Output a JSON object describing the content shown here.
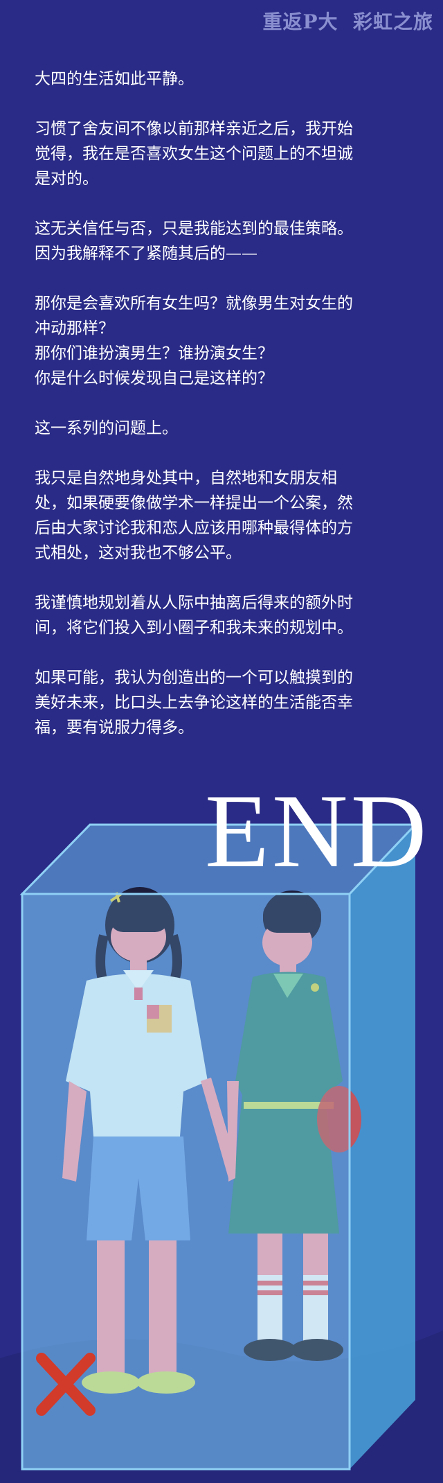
{
  "header": {
    "title": "重返P大  彩虹之旅"
  },
  "paragraphs": [
    "大四的生活如此平静。",
    "习惯了舍友间不像以前那样亲近之后，我开始\n觉得，我在是否喜欢女生这个问题上的不坦诚\n是对的。",
    "这无关信任与否，只是我能达到的最佳策略。\n因为我解释不了紧随其后的——",
    "那你是会喜欢所有女生吗？就像男生对女生的\n冲动那样？\n那你们谁扮演男生？谁扮演女生？\n你是什么时候发现自己是这样的？",
    "这一系列的问题上。",
    "我只是自然地身处其中，自然地和女朋友相\n处，如果硬要像做学术一样提出一个公案，然\n后由大家讨论我和恋人应该用哪种最得体的方\n式相处，这对我也不够公平。",
    "我谨慎地规划着从人际中抽离后得来的额外时\n间，将它们投入到小圈子和我未来的规划中。",
    "如果可能，我认为创造出的一个可以触摸到的\n美好未来，比口头上去争论这样的生活能否幸\n福，要有说服力得多。"
  ],
  "end_label": "END",
  "colors": {
    "background": "#2a2b86",
    "box_glass": "#5fb3e8",
    "accent_red": "#d23a2a"
  }
}
